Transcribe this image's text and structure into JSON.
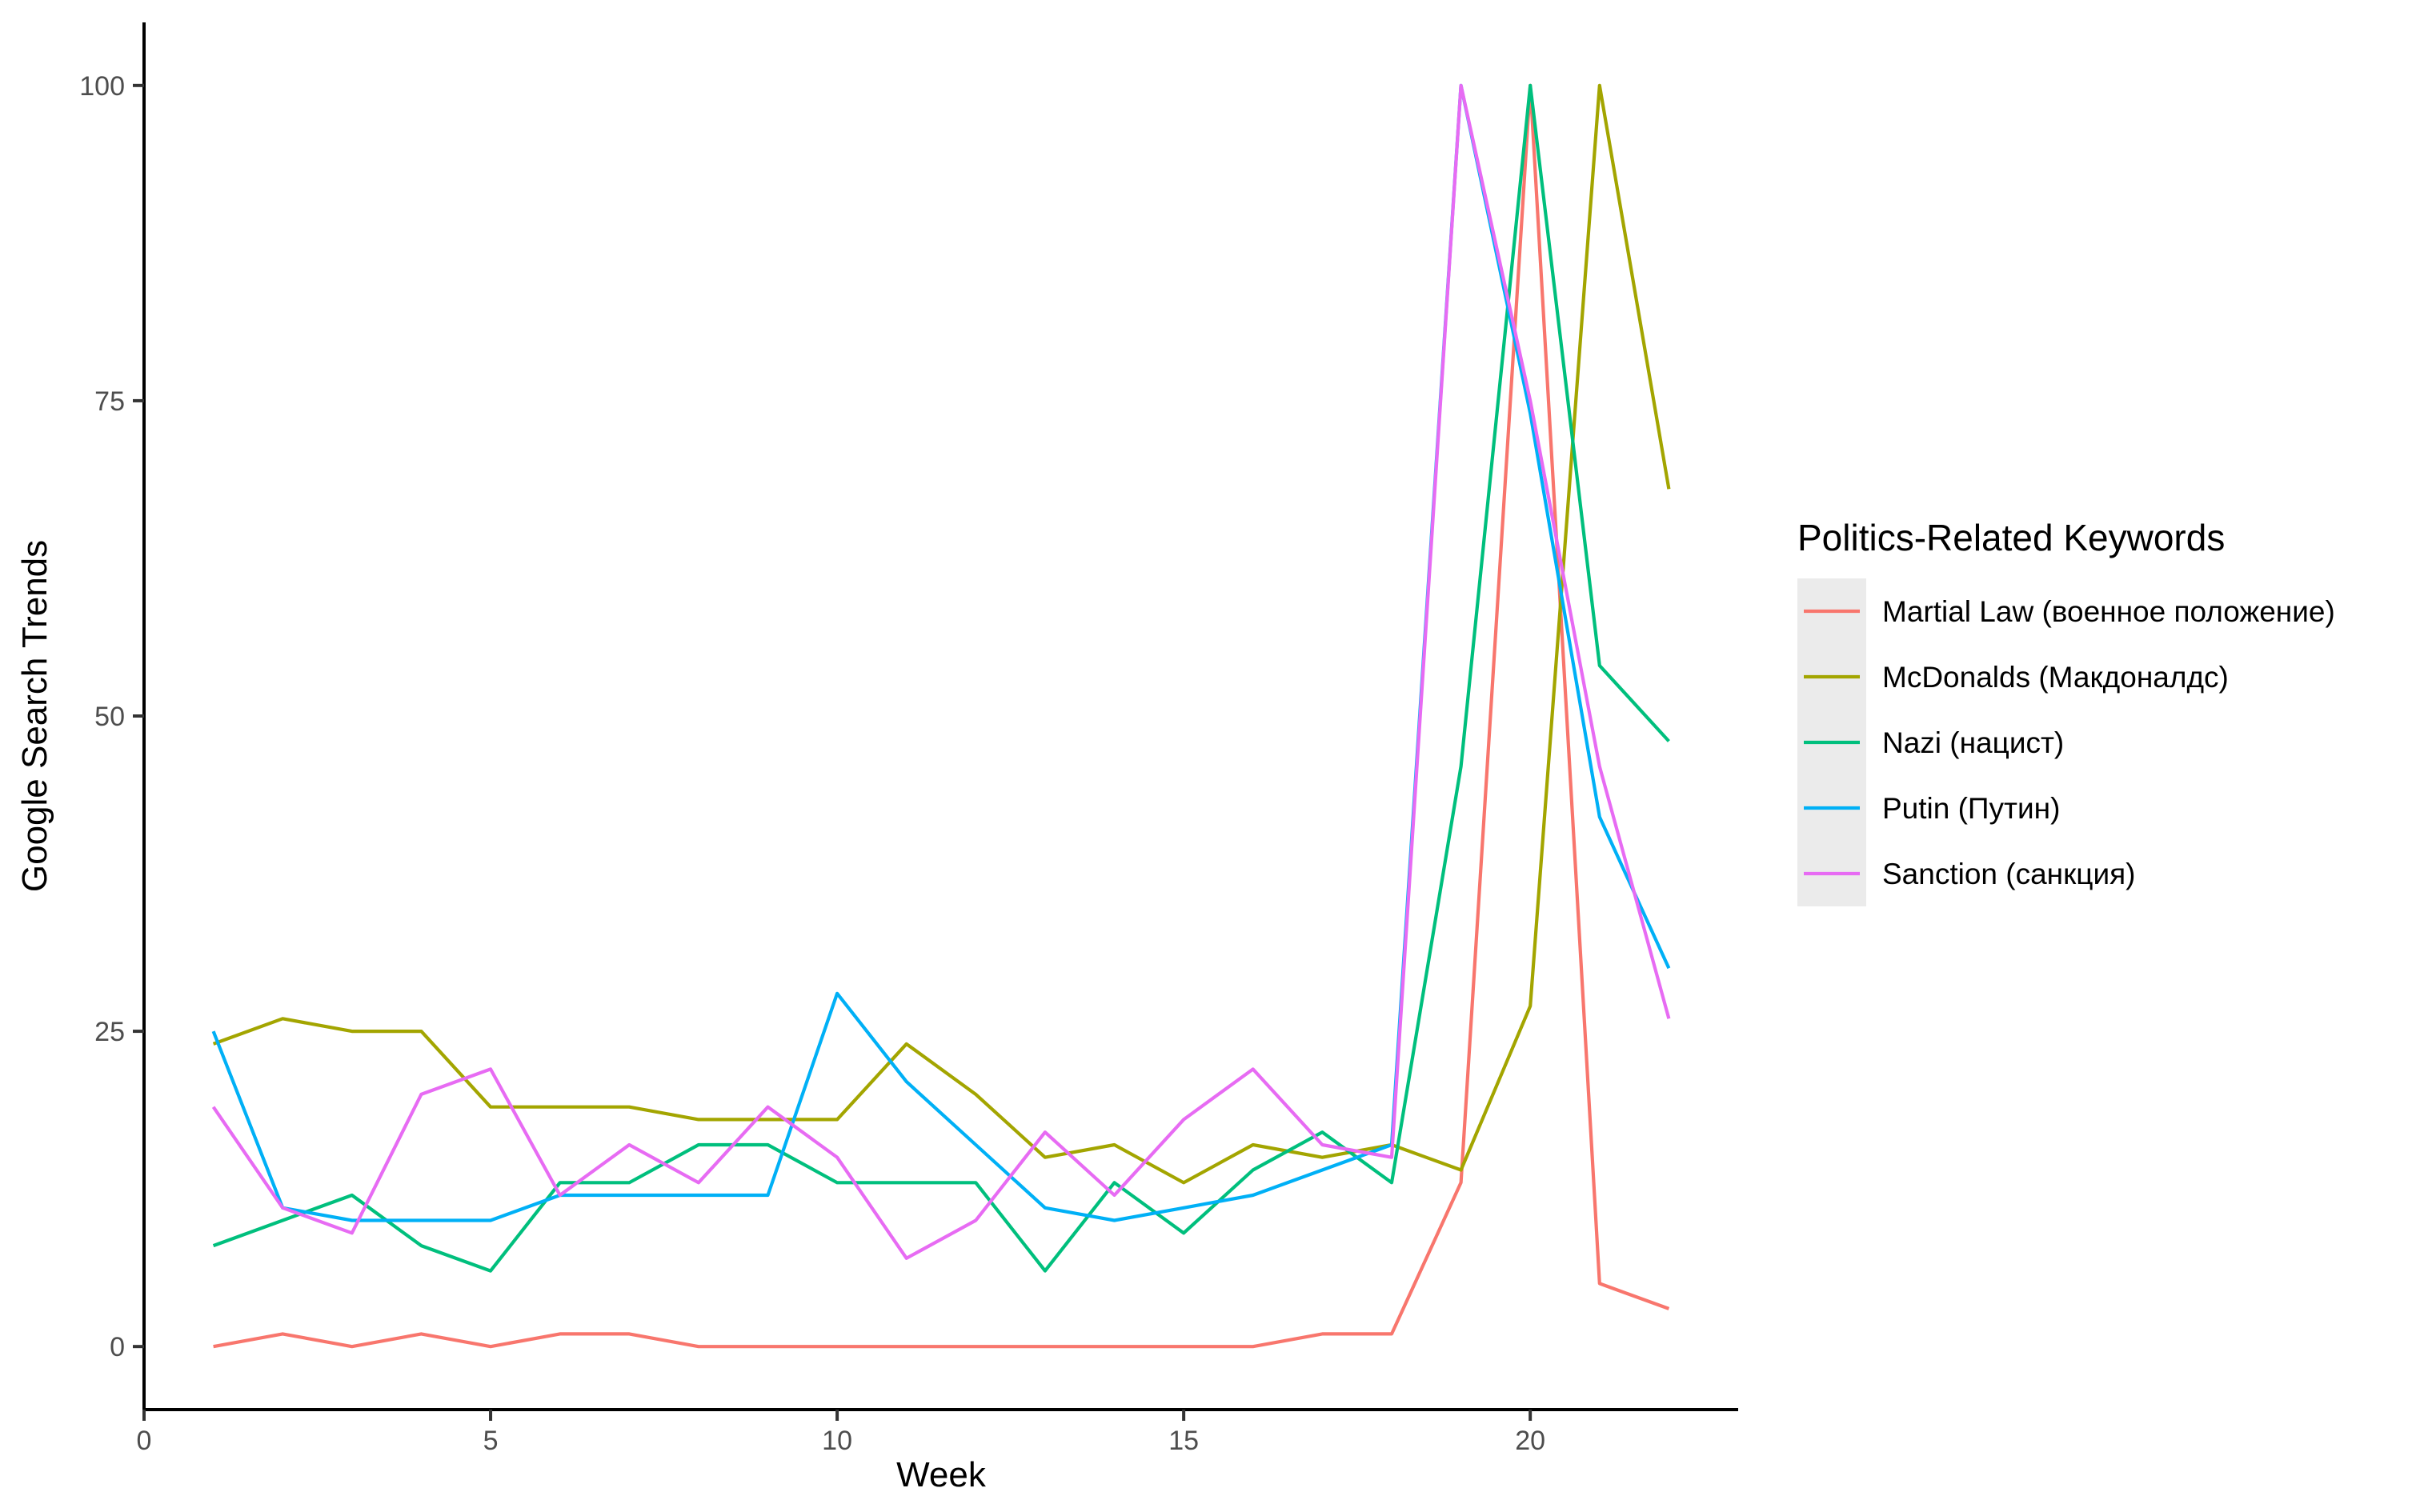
{
  "chart_data": {
    "type": "line",
    "title": "",
    "xlabel": "Week",
    "ylabel": "Google Search Trends",
    "xlim": [
      0,
      23
    ],
    "ylim": [
      -5,
      105
    ],
    "x_ticks": [
      0,
      5,
      10,
      15,
      20
    ],
    "y_ticks": [
      0,
      25,
      50,
      75,
      100
    ],
    "x_tick_labels": [
      "0",
      "5",
      "10",
      "15",
      "20"
    ],
    "y_tick_labels": [
      "0",
      "25",
      "50",
      "75",
      "100"
    ],
    "grid": false,
    "legend_position": "right",
    "legend_title": "Politics-Related Keywords",
    "x": [
      1,
      2,
      3,
      4,
      5,
      6,
      7,
      8,
      9,
      10,
      11,
      12,
      13,
      14,
      15,
      16,
      17,
      18,
      19,
      20,
      21,
      22
    ],
    "series": [
      {
        "name": "Martial Law (военное положение)",
        "color": "#F8766D",
        "values": [
          0,
          1,
          0,
          1,
          0,
          1,
          1,
          0,
          0,
          0,
          0,
          0,
          0,
          0,
          0,
          0,
          1,
          1,
          13,
          100,
          5,
          3
        ]
      },
      {
        "name": "McDonalds (Макдоналдс)",
        "color": "#A3A500",
        "values": [
          24,
          26,
          25,
          25,
          19,
          19,
          19,
          18,
          18,
          18,
          24,
          20,
          15,
          16,
          13,
          16,
          15,
          16,
          14,
          27,
          100,
          68
        ]
      },
      {
        "name": "Nazi (нацист)",
        "color": "#00BF7D",
        "values": [
          8,
          10,
          12,
          8,
          6,
          13,
          13,
          16,
          16,
          13,
          13,
          13,
          6,
          13,
          9,
          14,
          17,
          13,
          46,
          100,
          54,
          48
        ]
      },
      {
        "name": "Putin (Путин)",
        "color": "#00B0F6",
        "values": [
          25,
          11,
          10,
          10,
          10,
          12,
          12,
          12,
          12,
          28,
          21,
          16,
          11,
          10,
          11,
          12,
          14,
          16,
          100,
          74,
          42,
          30
        ]
      },
      {
        "name": "Sanction (санкция)",
        "color": "#E76BF3",
        "values": [
          19,
          11,
          9,
          20,
          22,
          12,
          16,
          13,
          19,
          15,
          7,
          10,
          17,
          12,
          18,
          22,
          16,
          15,
          100,
          75,
          46,
          26
        ]
      }
    ]
  }
}
